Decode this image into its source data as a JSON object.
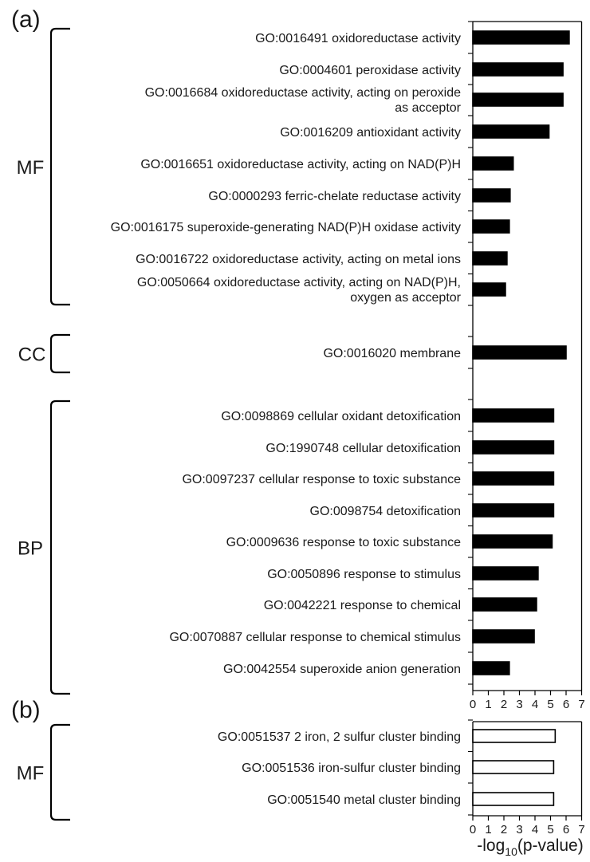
{
  "panels": [
    {
      "panel_label": "(a)",
      "chart_data": {
        "type": "bar",
        "orientation": "horizontal",
        "bar_fill": "#000000",
        "xlim": [
          0,
          7
        ],
        "xticks": [
          "0",
          "1",
          "2",
          "3",
          "4",
          "5",
          "6",
          "7"
        ],
        "groups": [
          {
            "label": "MF",
            "items": [
              {
                "lines": [
                  "GO:0016491 oxidoreductase activity"
                ],
                "value": 6.2
              },
              {
                "lines": [
                  "GO:0004601 peroxidase activity"
                ],
                "value": 5.8
              },
              {
                "lines": [
                  "GO:0016684 oxidoreductase activity, acting on peroxide",
                  "as acceptor"
                ],
                "value": 5.8
              },
              {
                "lines": [
                  "GO:0016209 antioxidant activity"
                ],
                "value": 4.9
              },
              {
                "lines": [
                  "GO:0016651 oxidoreductase activity, acting on NAD(P)H"
                ],
                "value": 2.6
              },
              {
                "lines": [
                  "GO:0000293 ferric-chelate reductase activity"
                ],
                "value": 2.4
              },
              {
                "lines": [
                  "GO:0016175 superoxide-generating NAD(P)H oxidase activity"
                ],
                "value": 2.35
              },
              {
                "lines": [
                  "GO:0016722 oxidoreductase activity, acting on metal ions"
                ],
                "value": 2.2
              },
              {
                "lines": [
                  "GO:0050664 oxidoreductase activity, acting on NAD(P)H,",
                  "oxygen as acceptor"
                ],
                "value": 2.1
              }
            ]
          },
          {
            "label": "CC",
            "items": [
              {
                "lines": [
                  "GO:0016020 membrane"
                ],
                "value": 6.0
              }
            ]
          },
          {
            "label": "BP",
            "items": [
              {
                "lines": [
                  "GO:0098869 cellular oxidant detoxification"
                ],
                "value": 5.2
              },
              {
                "lines": [
                  "GO:1990748 cellular detoxification"
                ],
                "value": 5.2
              },
              {
                "lines": [
                  "GO:0097237 cellular response to toxic substance"
                ],
                "value": 5.2
              },
              {
                "lines": [
                  "GO:0098754 detoxification"
                ],
                "value": 5.2
              },
              {
                "lines": [
                  "GO:0009636 response to toxic substance"
                ],
                "value": 5.1
              },
              {
                "lines": [
                  "GO:0050896 response to stimulus"
                ],
                "value": 4.2
              },
              {
                "lines": [
                  "GO:0042221 response to chemical"
                ],
                "value": 4.1
              },
              {
                "lines": [
                  "GO:0070887 cellular response to chemical stimulus"
                ],
                "value": 3.95
              },
              {
                "lines": [
                  "GO:0042554 superoxide anion generation"
                ],
                "value": 2.35
              }
            ]
          }
        ]
      }
    },
    {
      "panel_label": "(b)",
      "chart_data": {
        "type": "bar",
        "orientation": "horizontal",
        "bar_fill": "#ffffff",
        "xlim": [
          0,
          7
        ],
        "xticks": [
          "0",
          "1",
          "2",
          "3",
          "4",
          "5",
          "6",
          "7"
        ],
        "groups": [
          {
            "label": "MF",
            "items": [
              {
                "lines": [
                  "GO:0051537 2 iron, 2 sulfur cluster binding"
                ],
                "value": 5.3
              },
              {
                "lines": [
                  "GO:0051536 iron-sulfur cluster binding"
                ],
                "value": 5.2
              },
              {
                "lines": [
                  "GO:0051540 metal cluster binding"
                ],
                "value": 5.2
              }
            ]
          }
        ]
      }
    }
  ],
  "xlabel": {
    "prefix": "-log",
    "sub": "10",
    "suffix": "(p-value)"
  },
  "colors": {
    "bar_stroke": "#000000",
    "axis": "#000000",
    "text": "#1a1a1a"
  }
}
